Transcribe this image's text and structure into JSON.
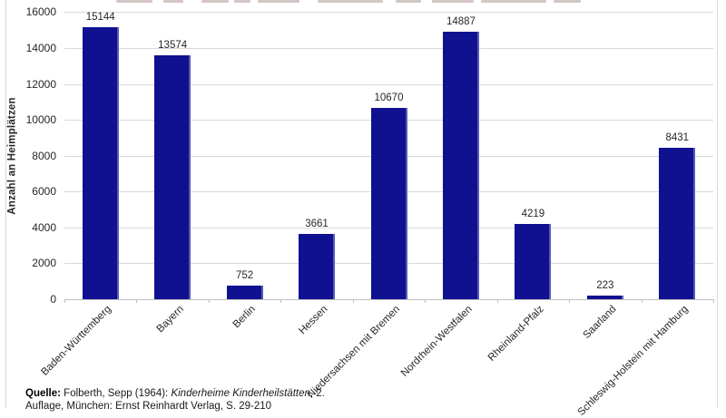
{
  "chart_data": {
    "type": "bar",
    "categories": [
      "Baden-Württemberg",
      "Bayern",
      "Berlin",
      "Hessen",
      "Niedersachsen mit Bremen",
      "Nordrhein-Westfalen",
      "Rheinland-Pfalz",
      "Saarland",
      "Schleswig-Holstein mit Hamburg"
    ],
    "values": [
      15144,
      13574,
      752,
      3661,
      10670,
      14887,
      4219,
      223,
      8431
    ],
    "ylabel": "Anzahl an Heimplätzen",
    "xlabel": "",
    "ylim": [
      0,
      16000
    ],
    "yticks": [
      0,
      2000,
      4000,
      6000,
      8000,
      10000,
      12000,
      14000,
      16000
    ],
    "grid": "horizontal",
    "legend": "none",
    "value_labels_shown": true,
    "bar_color": "#0f1191",
    "gridline_color": "#d9d9d9",
    "axis_line_color": "#bfbfbf"
  },
  "footer": {
    "source_label": "Quelle:",
    "source_text": " Folberth, Sepp (1964): ",
    "source_title_italic": "Kinderheime Kinderheilstätten",
    "source_suffix": ", 2.",
    "source_line2": "Auflage, München: Ernst Reinhardt Verlag, S. 29-210"
  }
}
